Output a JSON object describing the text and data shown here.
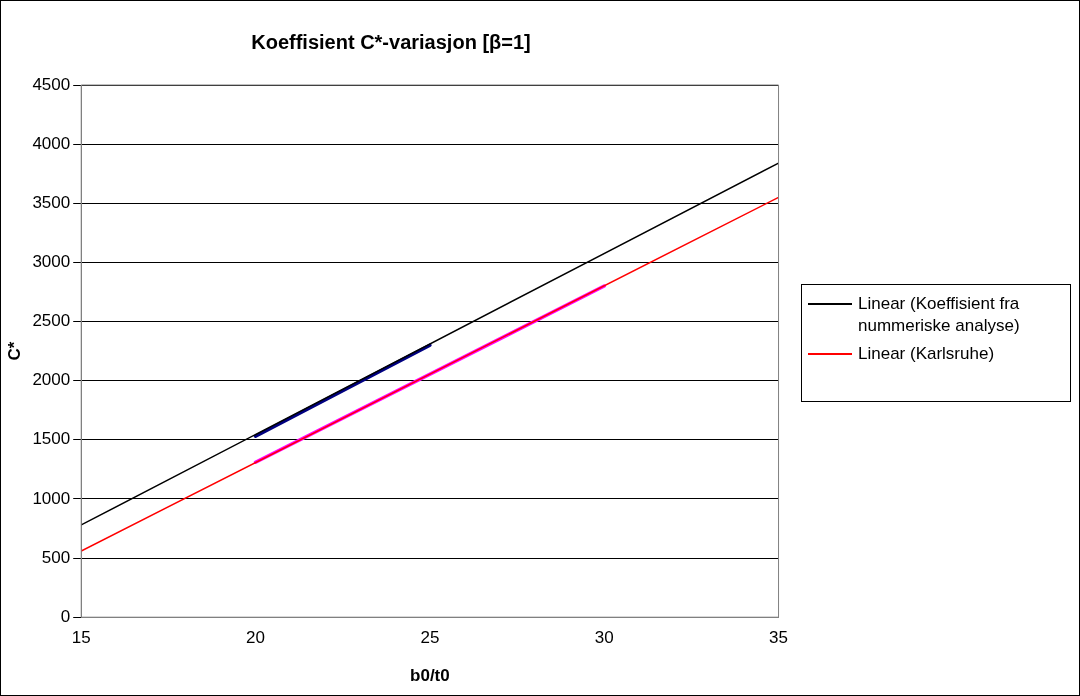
{
  "chart_data": {
    "type": "line",
    "title": "Koeffisient C*-variasjon [β=1]",
    "xlabel": "b0/t0",
    "ylabel": "C*",
    "xlim": [
      15,
      35
    ],
    "xticks": [
      15,
      20,
      25,
      30,
      35
    ],
    "ylim": [
      0,
      4500
    ],
    "yticks": [
      0,
      500,
      1000,
      1500,
      2000,
      2500,
      3000,
      3500,
      4000,
      4500
    ],
    "grid": "y",
    "legend": "right",
    "marker": "none",
    "line_style": "solid",
    "series": [
      {
        "name": "Linear (Koeffisient fra nummeriske analyse)",
        "color": "#000000",
        "x": [
          15,
          35
        ],
        "values": [
          780,
          3840
        ]
      },
      {
        "name": "Linear (Karlsruhe)",
        "color": "#ff0000",
        "x": [
          15,
          35
        ],
        "values": [
          560,
          3550
        ]
      },
      {
        "color": "#000080",
        "x": [
          20,
          25
        ],
        "values": [
          1530,
          2300
        ]
      },
      {
        "color": "#ff00ff",
        "x": [
          20,
          30
        ],
        "values": [
          1310,
          2800
        ]
      }
    ]
  }
}
